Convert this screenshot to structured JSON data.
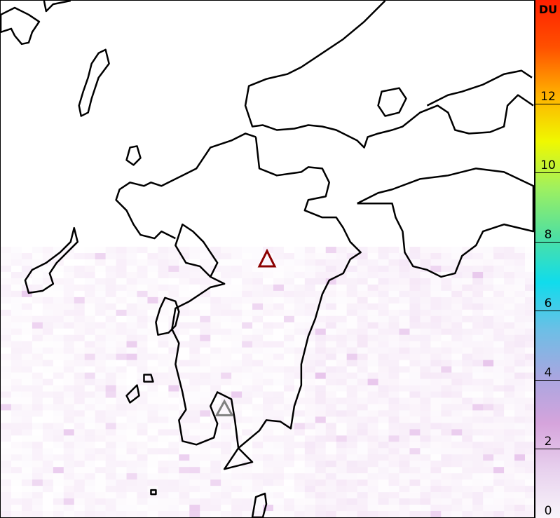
{
  "colorbar": {
    "unit": "DU",
    "ticks": [
      "0",
      "2",
      "4",
      "6",
      "8",
      "10",
      "12"
    ],
    "range": [
      0,
      15
    ],
    "colors": [
      "#f8f4fa",
      "#e8d2ee",
      "#d6a4dc",
      "#a8a6e0",
      "#6cbfe6",
      "#10dcec",
      "#50e0a0",
      "#9ef060",
      "#f0f800",
      "#ffb000",
      "#ff5000",
      "#ff2000"
    ]
  },
  "map": {
    "region": "Kyushu, Japan",
    "coast_color": "#000000",
    "markers": [
      {
        "type": "volcano-triangle",
        "color": "#8b0000"
      },
      {
        "type": "volcano-triangle",
        "color": "#808080"
      }
    ],
    "so2_max_shown_du": 3
  }
}
